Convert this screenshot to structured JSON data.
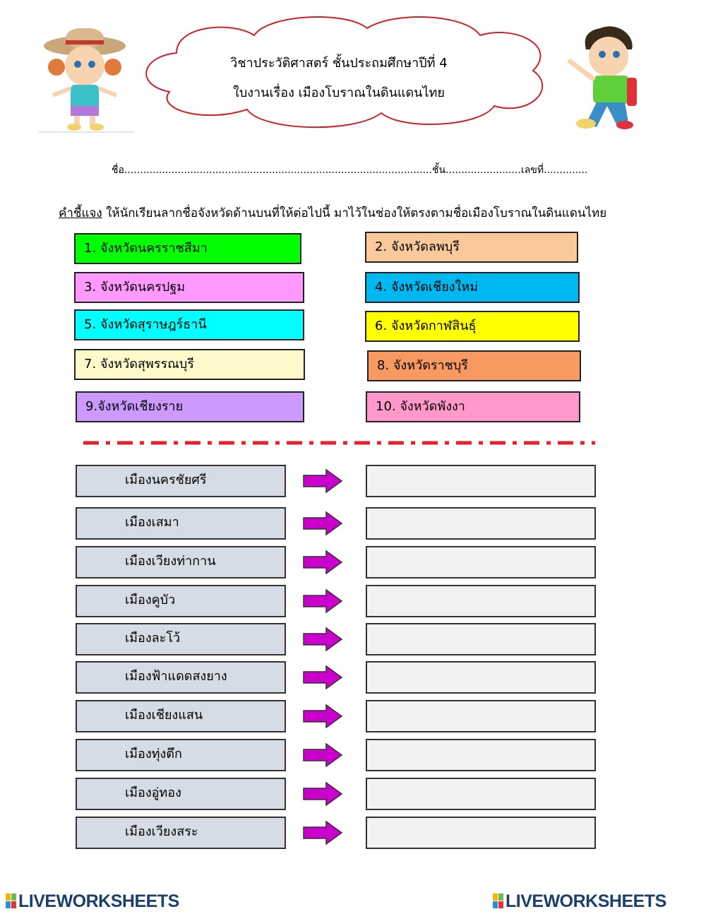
{
  "header": {
    "line1": "วิชาประวัติศาสตร์  ชั้นประถมศึกษาปีที่ 4",
    "line2": "ใบงานเรื่อง เมืองโบราณในดินแดนไทย"
  },
  "student_line": "ชื่อ..................................................................................................ชั้น........................เลขที่..............",
  "instructions": {
    "label": "คำชี้แจง",
    "text": " ให้นักเรียนลากชื่อจังหวัดด้านบนที่ให้ต่อไปนี้ มาไว้ในช่องให้ตรงตามชื่อเมืองโบราณในดินแดนไทย"
  },
  "provinces": [
    {
      "label": "1. จังหวัดนครราชสีมา",
      "color": "#00ff00"
    },
    {
      "label": "2. จังหวัดลพบุรี",
      "color": "#f9c99b"
    },
    {
      "label": "3. จังหวัดนครปฐม",
      "color": "#ff99ff"
    },
    {
      "label": "4. จังหวัดเชียงใหม่",
      "color": "#00b8f0"
    },
    {
      "label": "5. จังหวัดสุราษฎร์ธานี",
      "color": "#00ffff"
    },
    {
      "label": "6. จังหวัดกาฬสินธุ์",
      "color": "#ffff00"
    },
    {
      "label": "7. จังหวัดสุพรรณบุรี",
      "color": "#fff9cc"
    },
    {
      "label": "8. จังหวัดราชบุรี",
      "color": "#f79a62"
    },
    {
      "label": "9.จังหวัดเชียงราย",
      "color": "#cc99ff"
    },
    {
      "label": "10. จังหวัดพังงา",
      "color": "#ff99cc"
    }
  ],
  "cities": [
    "เมืองนครชัยศรี",
    "เมืองเสมา",
    "เมืองเวียงท่ากาน",
    "เมืองคูบัว",
    "เมืองละโว้",
    "เมืองฟ้าแดดสงยาง",
    "เมืองเชียงแสน",
    "เมืองทุ่งตึก",
    "เมืองอู่ทอง",
    "เมืองเวียงสระ"
  ],
  "arrow_color": "#cc00cc",
  "footer": {
    "logo_left": "LIVEWORKSHEETS",
    "logo_right": "LIVEWORKSHEETS"
  }
}
